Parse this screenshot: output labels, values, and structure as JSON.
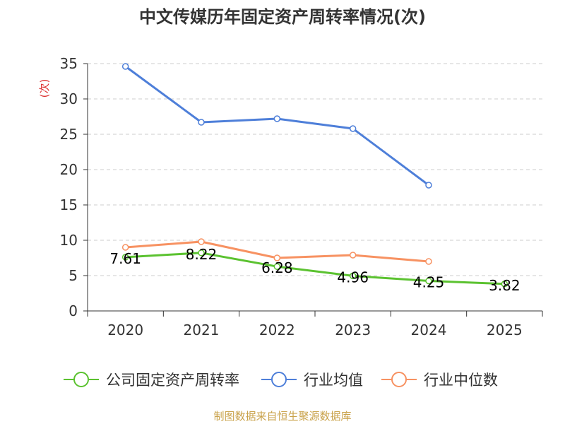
{
  "page": {
    "title": "中文传媒历年固定资产周转率情况(次)",
    "source": "制图数据来自恒生聚源数据库"
  },
  "chart_data": {
    "type": "line",
    "title": "中文传媒历年固定资产周转率情况(次)",
    "ylabel": "(次)",
    "xlabel": "",
    "categories": [
      "2020",
      "2021",
      "2022",
      "2023",
      "2024",
      "2025"
    ],
    "ylim": [
      0,
      35
    ],
    "yticks": [
      0,
      5,
      10,
      15,
      20,
      25,
      30,
      35
    ],
    "grid": true,
    "legend_position": "bottom",
    "series": [
      {
        "name": "公司固定资产周转率",
        "color": "#5bc230",
        "values": [
          7.61,
          8.22,
          6.28,
          4.96,
          4.25,
          3.82
        ],
        "labels": [
          "7.61",
          "8.22",
          "6.28",
          "4.96",
          "4.25",
          "3.82"
        ],
        "show_labels": true
      },
      {
        "name": "行业均值",
        "color": "#4e7fd9",
        "values": [
          34.6,
          26.7,
          27.2,
          25.8,
          17.8,
          null
        ],
        "show_labels": false
      },
      {
        "name": "行业中位数",
        "color": "#f79262",
        "values": [
          9.0,
          9.8,
          7.5,
          7.9,
          7.0,
          null
        ],
        "show_labels": false
      }
    ]
  }
}
